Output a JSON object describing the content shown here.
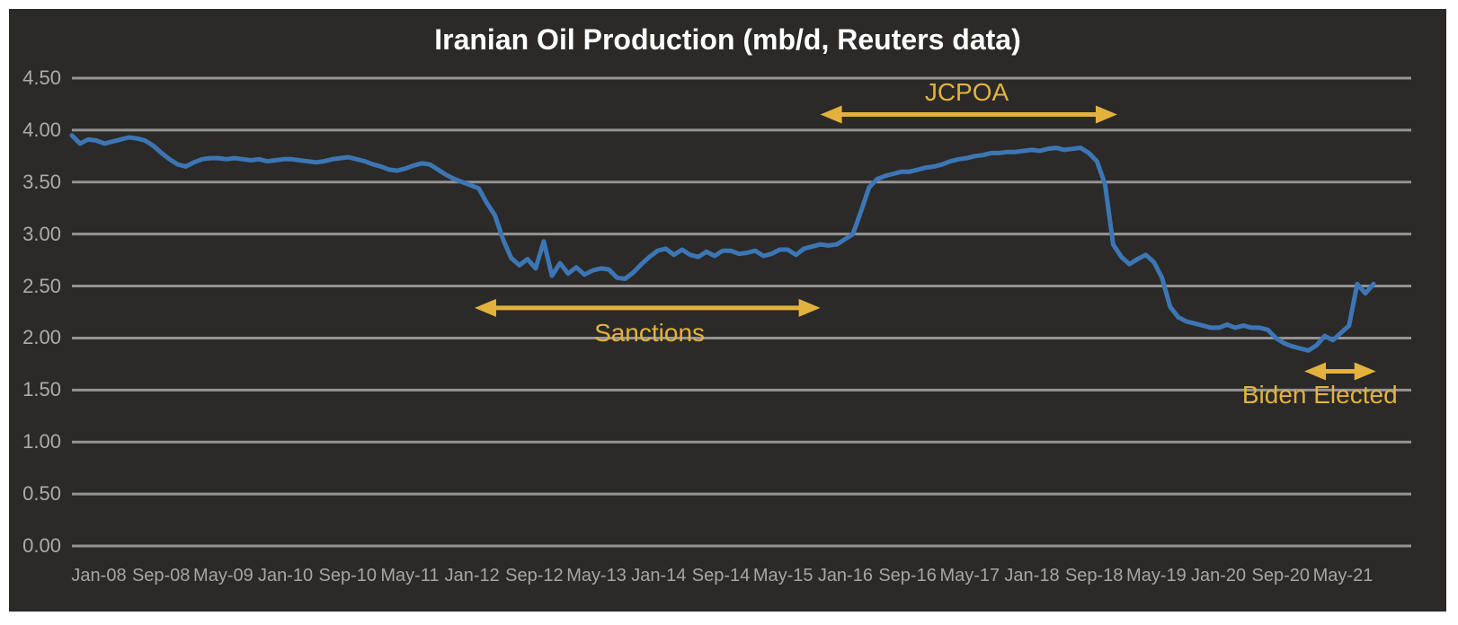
{
  "title": "Iranian Oil Production (mb/d, Reuters data)",
  "colors": {
    "page_border": "#ffffff",
    "background": "#2b2a28",
    "title_text": "#ffffff",
    "gridline": "#949494",
    "tick_text": "#aeaca9",
    "line": "#3c76b5",
    "annotation": "#e3b23e"
  },
  "chart_data": {
    "type": "line",
    "title": "Iranian Oil Production (mb/d, Reuters data)",
    "ylabel": "",
    "xlabel": "",
    "ylim": [
      0,
      4.5
    ],
    "grid": "horizontal",
    "legend": "none",
    "y_ticks": [
      "4.50",
      "4.00",
      "3.50",
      "3.00",
      "2.50",
      "2.00",
      "1.50",
      "1.00",
      "0.50",
      "0.00"
    ],
    "x_tick_labels": [
      "Jan-08",
      "Sep-08",
      "May-09",
      "Jan-10",
      "Sep-10",
      "May-11",
      "Jan-12",
      "Sep-12",
      "May-13",
      "Jan-14",
      "Sep-14",
      "May-15",
      "Jan-16",
      "Sep-16",
      "May-17",
      "Jan-18",
      "Sep-18",
      "May-19",
      "Jan-20",
      "Sep-20",
      "May-21"
    ],
    "x_range": {
      "start": "Jan-2008",
      "end": "May-2021",
      "frequency": "monthly"
    },
    "series": [
      {
        "name": "Iranian oil production (mb/d)",
        "values": [
          3.95,
          3.87,
          3.91,
          3.9,
          3.87,
          3.89,
          3.91,
          3.93,
          3.92,
          3.9,
          3.85,
          3.78,
          3.72,
          3.67,
          3.65,
          3.69,
          3.72,
          3.73,
          3.73,
          3.72,
          3.73,
          3.72,
          3.71,
          3.72,
          3.7,
          3.71,
          3.72,
          3.72,
          3.71,
          3.7,
          3.69,
          3.7,
          3.72,
          3.73,
          3.74,
          3.72,
          3.7,
          3.67,
          3.65,
          3.62,
          3.61,
          3.63,
          3.66,
          3.68,
          3.67,
          3.62,
          3.57,
          3.53,
          3.5,
          3.47,
          3.44,
          3.3,
          3.18,
          2.95,
          2.77,
          2.7,
          2.76,
          2.67,
          2.93,
          2.6,
          2.72,
          2.62,
          2.68,
          2.61,
          2.65,
          2.67,
          2.66,
          2.58,
          2.57,
          2.63,
          2.71,
          2.78,
          2.84,
          2.86,
          2.8,
          2.85,
          2.8,
          2.78,
          2.83,
          2.79,
          2.84,
          2.84,
          2.81,
          2.82,
          2.84,
          2.79,
          2.81,
          2.85,
          2.85,
          2.8,
          2.86,
          2.88,
          2.9,
          2.89,
          2.9,
          2.95,
          3.0,
          3.22,
          3.45,
          3.53,
          3.56,
          3.58,
          3.6,
          3.6,
          3.62,
          3.64,
          3.65,
          3.67,
          3.7,
          3.72,
          3.73,
          3.75,
          3.76,
          3.78,
          3.78,
          3.79,
          3.79,
          3.8,
          3.81,
          3.8,
          3.82,
          3.83,
          3.81,
          3.82,
          3.83,
          3.78,
          3.7,
          3.48,
          2.9,
          2.78,
          2.71,
          2.76,
          2.8,
          2.73,
          2.58,
          2.3,
          2.2,
          2.16,
          2.14,
          2.12,
          2.1,
          2.1,
          2.13,
          2.1,
          2.12,
          2.1,
          2.1,
          2.08,
          2.0,
          1.95,
          1.92,
          1.9,
          1.88,
          1.93,
          2.02,
          1.98,
          2.05,
          2.12,
          2.52,
          2.43,
          2.52
        ]
      }
    ],
    "annotations": [
      {
        "label": "JCPOA",
        "slug": "jcpoa",
        "arrow_start_index": 92,
        "arrow_end_index": 128.5,
        "arrow_value": 4.15,
        "label_center_index": 110,
        "label_value": 4.36
      },
      {
        "label": "Sanctions",
        "slug": "sanctions",
        "arrow_start_index": 49.5,
        "arrow_end_index": 92,
        "arrow_value": 2.29,
        "label_center_index": 71,
        "label_value": 2.05
      },
      {
        "label": "Biden Elected",
        "slug": "biden-elected",
        "arrow_start_index": 151.5,
        "arrow_end_index": 160.3,
        "arrow_value": 1.68,
        "label_center_index": 153.4,
        "label_value": 1.45
      }
    ]
  }
}
